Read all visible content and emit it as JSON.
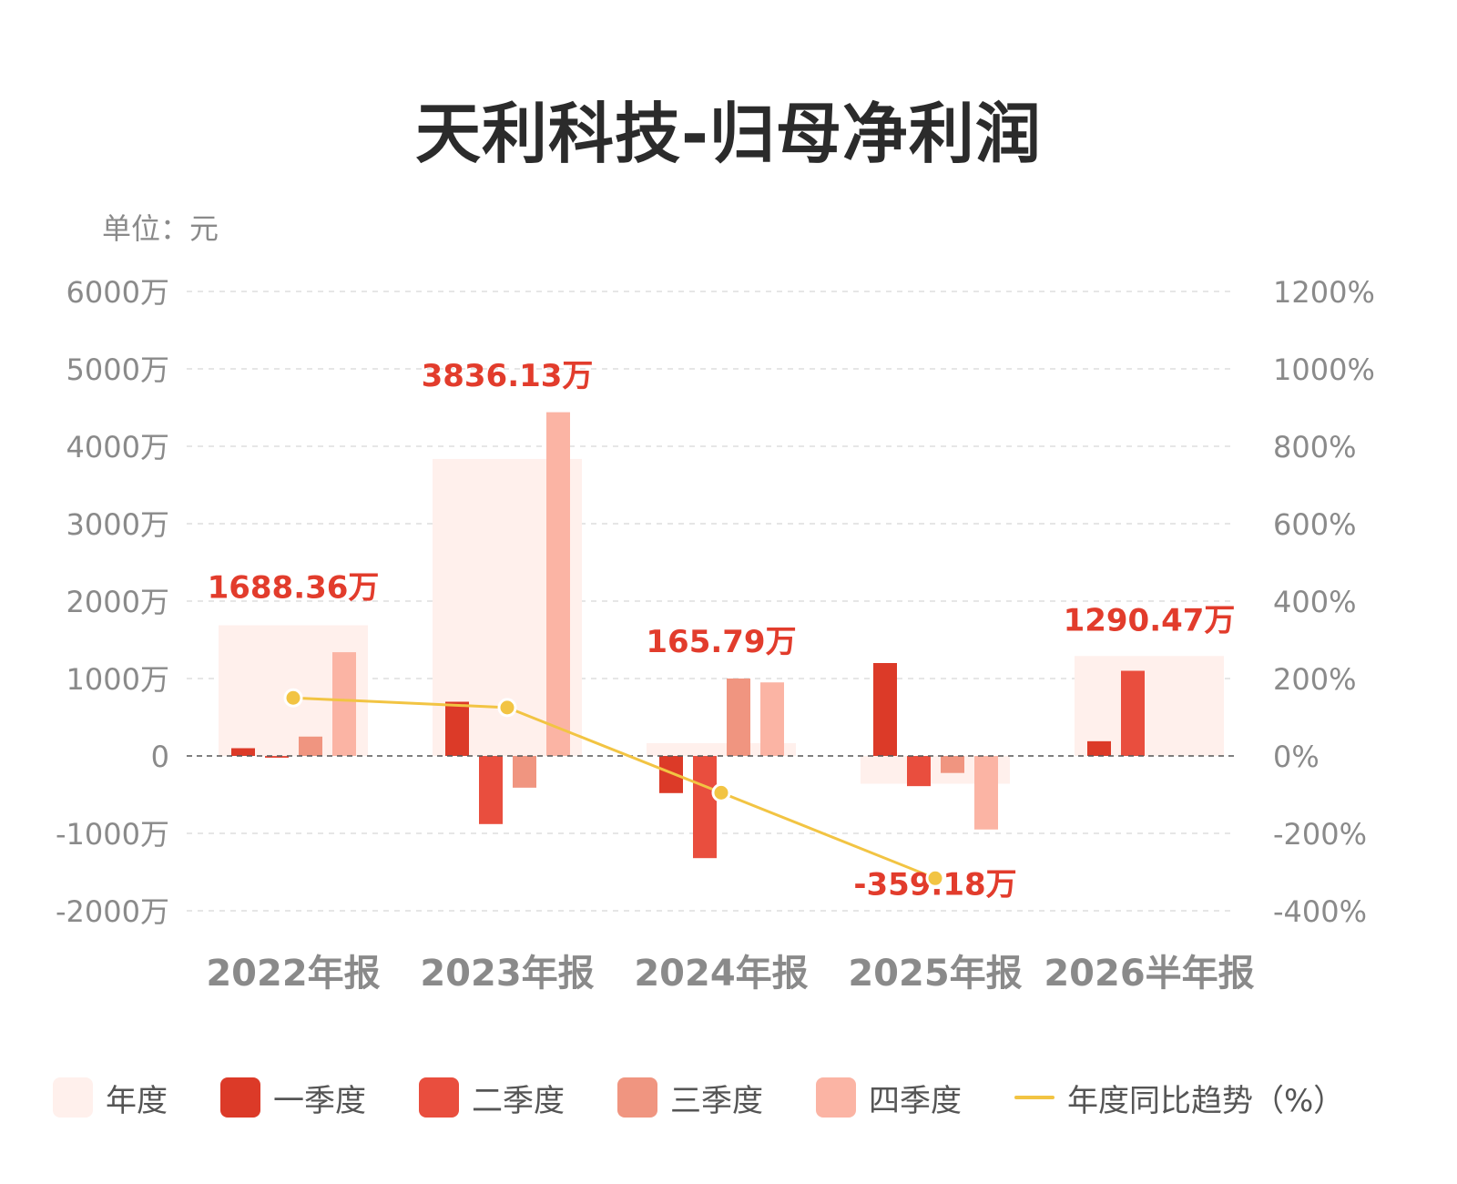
{
  "title": "天利科技-归母净利润",
  "unit_label": "单位：元",
  "legend": {
    "annual": "年度",
    "q1": "一季度",
    "q2": "二季度",
    "q3": "三季度",
    "q4": "四季度",
    "yoy": "年度同比趋势（%）"
  },
  "colors": {
    "annual": "#fff0ec",
    "q1": "#dc3a28",
    "q2": "#e94e3e",
    "q3": "#f09580",
    "q4": "#fbb4a4",
    "yoy": "#f2c443",
    "annual_label": "#e23c2c",
    "axis_text": "#8a8a8a"
  },
  "chart_data": {
    "type": "bar",
    "categories": [
      "2022年报",
      "2023年报",
      "2024年报",
      "2025年报",
      "2026半年报"
    ],
    "y_left": {
      "ticks": [
        6000,
        5000,
        4000,
        3000,
        2000,
        1000,
        0,
        -1000,
        -2000
      ],
      "tick_labels": [
        "6000万",
        "5000万",
        "4000万",
        "3000万",
        "2000万",
        "1000万",
        "0",
        "-1000万",
        "-2000万"
      ],
      "ylim": [
        -2000,
        6000
      ],
      "unit": "万"
    },
    "y_right": {
      "ticks": [
        1200,
        1000,
        800,
        600,
        400,
        200,
        0,
        -200,
        -400
      ],
      "tick_labels": [
        "1200%",
        "1000%",
        "800%",
        "600%",
        "400%",
        "200%",
        "0%",
        "-200%",
        "-400%"
      ],
      "ylim": [
        -400,
        1200
      ]
    },
    "annual": [
      1688.36,
      3836.13,
      165.79,
      -359.18,
      1290.47
    ],
    "annual_labels": [
      "1688.36万",
      "3836.13万",
      "165.79万",
      "-359.18万",
      "1290.47万"
    ],
    "series": [
      {
        "name": "一季度",
        "values": [
          100,
          700,
          -480,
          1200,
          190
        ]
      },
      {
        "name": "二季度",
        "values": [
          0,
          -880,
          -1320,
          -390,
          1100
        ]
      },
      {
        "name": "三季度",
        "values": [
          250,
          -410,
          1000,
          -220,
          null
        ]
      },
      {
        "name": "四季度",
        "values": [
          1340,
          4440,
          950,
          -950,
          null
        ]
      }
    ],
    "yoy": [
      150,
      125,
      -95,
      -316,
      null
    ],
    "grid": true
  }
}
